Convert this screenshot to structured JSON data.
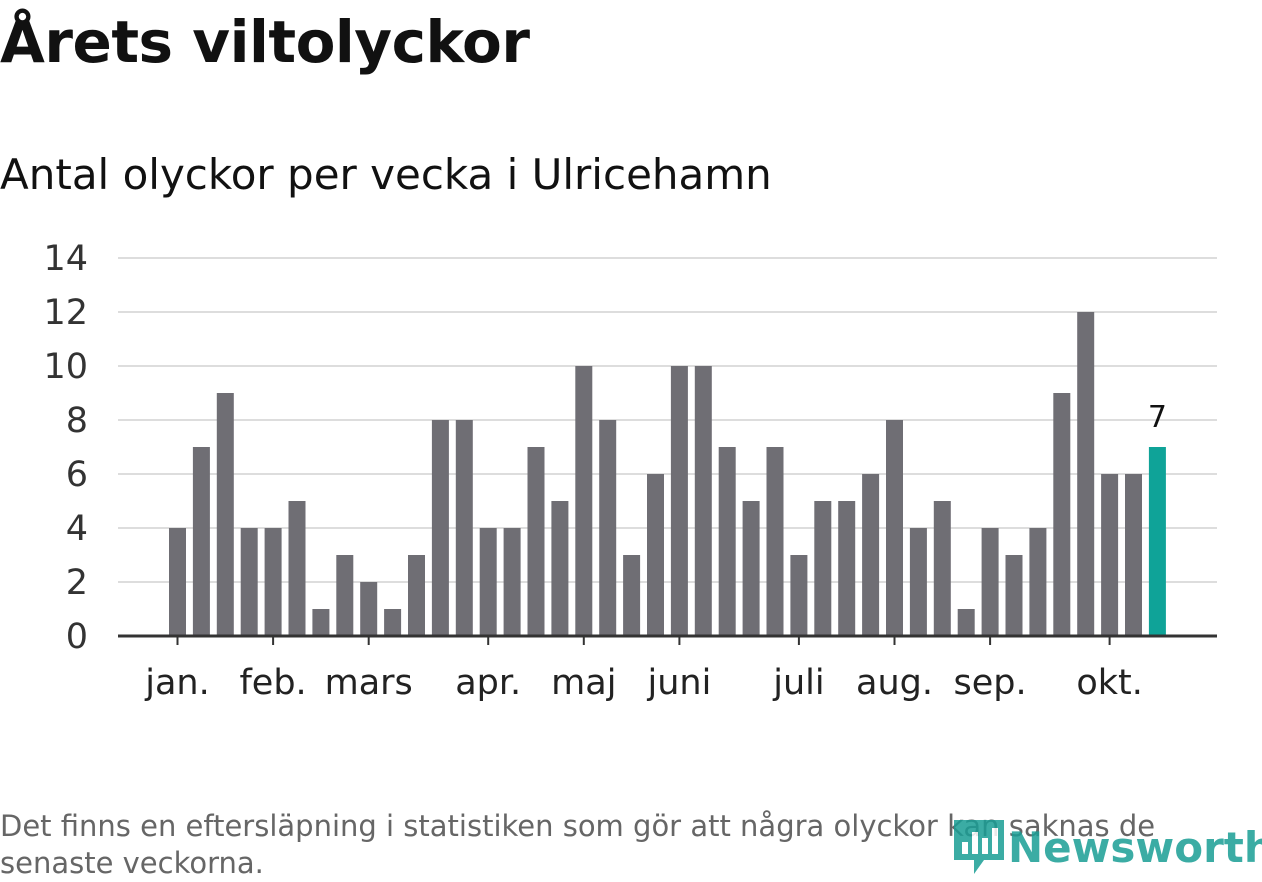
{
  "title": "Årets viltolyckor",
  "subtitle": "Antal olyckor per vecka i Ulricehamn",
  "footnote": "Det finns en eftersläpning i statistiken som gör att några olyckor kan saknas de senaste veckorna.",
  "brand": {
    "name": "Newsworthy",
    "color": "#1a9e95"
  },
  "colors": {
    "bar": "#6f6e74",
    "highlight": "#0fa398",
    "axis": "#333333",
    "grid": "#dddddd"
  },
  "chart_data": {
    "type": "bar",
    "title": "Antal olyckor per vecka i Ulricehamn",
    "xlabel": "",
    "ylabel": "",
    "ylim": [
      0,
      14
    ],
    "yticks": [
      0,
      2,
      4,
      6,
      8,
      10,
      12,
      14
    ],
    "grid": true,
    "month_labels": [
      {
        "label": "jan.",
        "week": 1
      },
      {
        "label": "feb.",
        "week": 5
      },
      {
        "label": "mars",
        "week": 9
      },
      {
        "label": "apr.",
        "week": 14
      },
      {
        "label": "maj",
        "week": 18
      },
      {
        "label": "juni",
        "week": 22
      },
      {
        "label": "juli",
        "week": 27
      },
      {
        "label": "aug.",
        "week": 31
      },
      {
        "label": "sep.",
        "week": 35
      },
      {
        "label": "okt.",
        "week": 40
      }
    ],
    "weeks": [
      1,
      2,
      3,
      4,
      5,
      6,
      7,
      8,
      9,
      10,
      11,
      12,
      13,
      14,
      15,
      16,
      17,
      18,
      19,
      20,
      21,
      22,
      23,
      24,
      25,
      26,
      27,
      28,
      29,
      30,
      31,
      32,
      33,
      34,
      35,
      36,
      37,
      38,
      39,
      40,
      41,
      42
    ],
    "values": [
      4,
      7,
      9,
      4,
      4,
      5,
      1,
      3,
      2,
      1,
      3,
      8,
      8,
      4,
      4,
      7,
      5,
      10,
      8,
      3,
      6,
      10,
      10,
      7,
      5,
      7,
      3,
      5,
      5,
      6,
      8,
      4,
      5,
      1,
      4,
      3,
      4,
      9,
      12,
      6,
      6,
      7
    ],
    "highlight_index": 41,
    "highlight_label": "7"
  }
}
